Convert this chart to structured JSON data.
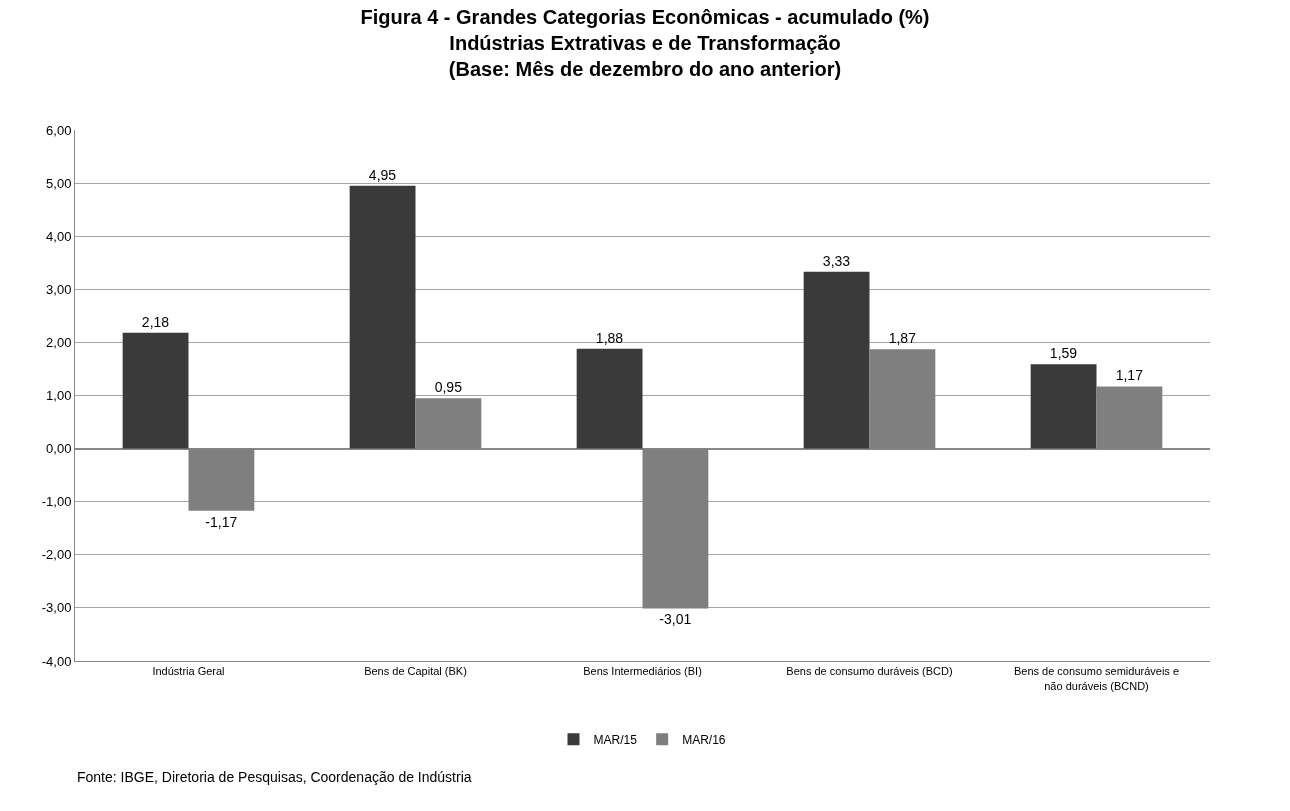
{
  "chart_data": {
    "type": "bar",
    "title": "Figura 4 - Grandes Categorias Econômicas - acumulado (%)",
    "subtitle": "Indústrias Extrativas e de Transformação\n(Base: Mês de dezembro do ano anterior)",
    "categories": [
      "Indústria Geral",
      "Bens de Capital (BK)",
      "Bens Intermediários (BI)",
      "Bens de consumo duráveis (BCD)",
      "Bens de consumo semiduráveis e não duráveis (BCND)"
    ],
    "series": [
      {
        "name": "MAR/15",
        "color": "#3a3a3a",
        "values": [
          2.18,
          4.95,
          1.88,
          3.33,
          1.59
        ],
        "value_labels": [
          "2,18",
          "4,95",
          "1,88",
          "3,33",
          "1,59"
        ]
      },
      {
        "name": "MAR/16",
        "color": "#7f7f7f",
        "values": [
          -1.17,
          0.95,
          -3.01,
          1.87,
          1.17
        ],
        "value_labels": [
          "-1,17",
          "0,95",
          "-3,01",
          "1,87",
          "1,17"
        ]
      }
    ],
    "ylim": [
      -4,
      6
    ],
    "yticks": [
      {
        "value": -4,
        "label": "-4,00"
      },
      {
        "value": -3,
        "label": "-3,00"
      },
      {
        "value": -2,
        "label": "-2,00"
      },
      {
        "value": -1,
        "label": "-1,00"
      },
      {
        "value": 0,
        "label": "0,00"
      },
      {
        "value": 1,
        "label": "1,00"
      },
      {
        "value": 2,
        "label": "2,00"
      },
      {
        "value": 3,
        "label": "3,00"
      },
      {
        "value": 4,
        "label": "4,00"
      },
      {
        "value": 5,
        "label": "5,00"
      },
      {
        "value": 6,
        "label": "6,00"
      }
    ],
    "grid": "y",
    "legend": "bottom",
    "annotations": [
      "Fonte: IBGE, Diretoria de Pesquisas, Coordenação de Indústria"
    ]
  }
}
